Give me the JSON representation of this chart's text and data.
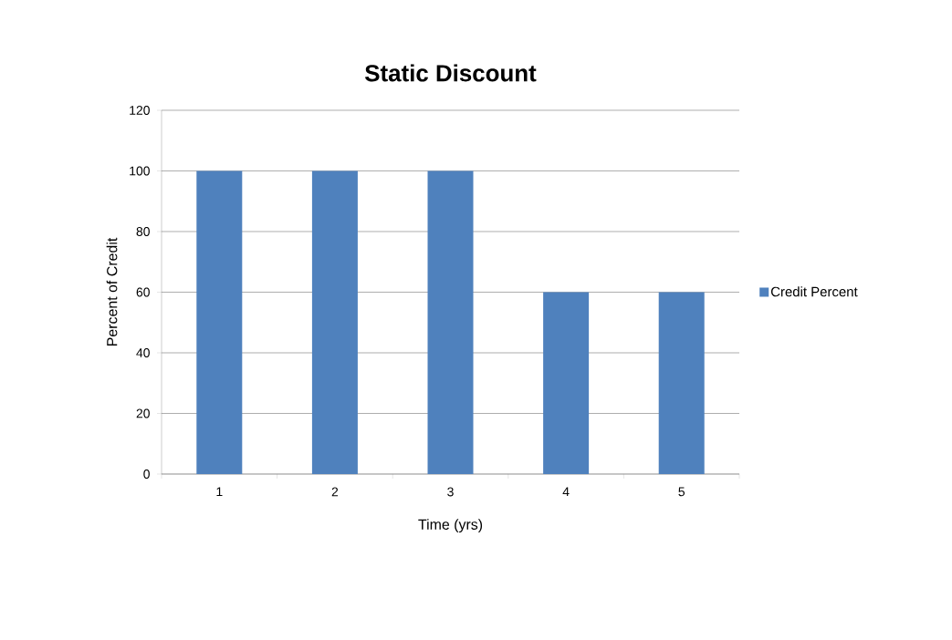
{
  "chart_data": {
    "type": "bar",
    "title": "Static Discount",
    "xlabel": "Time (yrs)",
    "ylabel": "Percent of Credit",
    "categories": [
      "1",
      "2",
      "3",
      "4",
      "5"
    ],
    "series": [
      {
        "name": "Credit Percent",
        "color": "#4f81bd",
        "values": [
          100,
          100,
          100,
          60,
          60
        ]
      }
    ],
    "ylim": [
      0,
      120
    ],
    "yticks": [
      0,
      20,
      40,
      60,
      80,
      100,
      120
    ],
    "grid": "y",
    "legend": "right"
  }
}
